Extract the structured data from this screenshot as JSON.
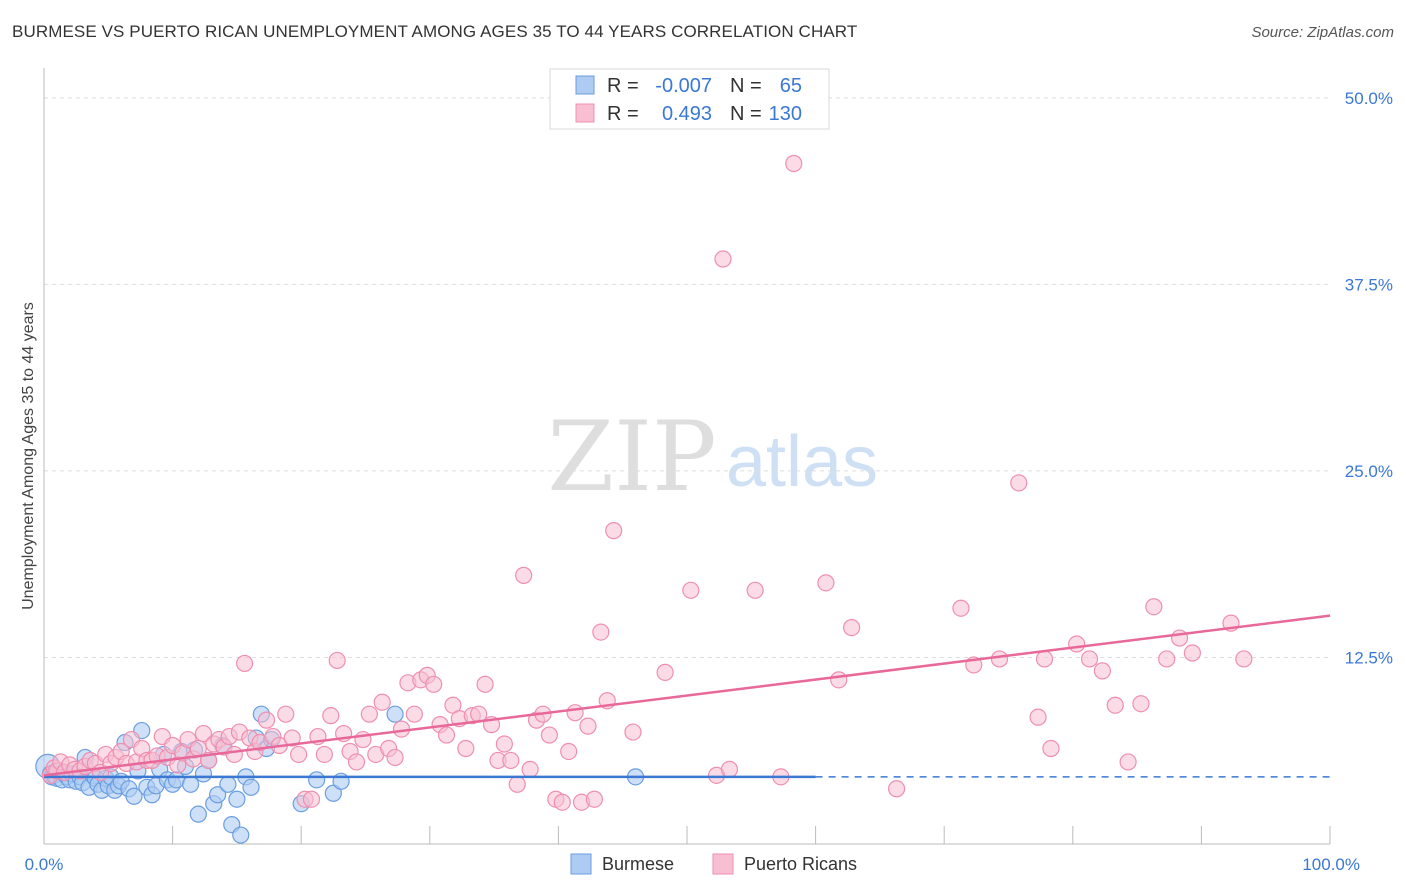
{
  "header": {
    "title": "BURMESE VS PUERTO RICAN UNEMPLOYMENT AMONG AGES 35 TO 44 YEARS CORRELATION CHART",
    "source": "Source: ZipAtlas.com"
  },
  "watermark": {
    "zip": "ZIP",
    "atlas": "atlas"
  },
  "legend_top": {
    "rows": [
      {
        "r_label": "R =",
        "r_value": "-0.007",
        "n_label": "N =",
        "n_value": "65"
      },
      {
        "r_label": "R =",
        "r_value": "0.493",
        "n_label": "N =",
        "n_value": "130"
      }
    ]
  },
  "colors": {
    "burmese_fill": "#aecbf2",
    "burmese_stroke": "#6a9ee0",
    "burmese_line": "#3a78d4",
    "puerto_fill": "#f8bfd2",
    "puerto_stroke": "#ee8fb0",
    "puerto_line": "#e8689a",
    "value_blue": "#3a78d4",
    "grid": "#dddddd"
  },
  "chart_data": {
    "type": "scatter",
    "title": "BURMESE VS PUERTO RICAN UNEMPLOYMENT AMONG AGES 35 TO 44 YEARS CORRELATION CHART",
    "xlabel": "",
    "ylabel": "Unemployment Among Ages 35 to 44 years",
    "xlim": [
      0,
      100
    ],
    "ylim": [
      0,
      52
    ],
    "x_tick_labels": [
      "0.0%",
      "100.0%"
    ],
    "y_ticks": [
      12.5,
      25.0,
      37.5,
      50.0
    ],
    "y_tick_labels": [
      "12.5%",
      "25.0%",
      "37.5%",
      "50.0%"
    ],
    "grid": true,
    "legend_position": "bottom-center",
    "series": [
      {
        "name": "Burmese",
        "R": -0.007,
        "N": 65,
        "trend": {
          "x0": 0,
          "y0": 4.5,
          "x1": 60,
          "y1": 4.5,
          "dashed_to_x": 100
        },
        "points": [
          [
            0.3,
            5.2
          ],
          [
            0.5,
            4.7
          ],
          [
            0.6,
            4.5
          ],
          [
            0.8,
            4.6
          ],
          [
            1.0,
            4.4
          ],
          [
            1.2,
            4.9
          ],
          [
            1.4,
            4.3
          ],
          [
            1.5,
            4.8
          ],
          [
            1.8,
            4.5
          ],
          [
            2.0,
            4.3
          ],
          [
            2.2,
            4.7
          ],
          [
            2.5,
            4.2
          ],
          [
            2.8,
            4.5
          ],
          [
            3.0,
            4.1
          ],
          [
            3.2,
            5.8
          ],
          [
            3.5,
            3.8
          ],
          [
            3.8,
            4.6
          ],
          [
            4.0,
            4.4
          ],
          [
            4.2,
            4.0
          ],
          [
            4.5,
            3.6
          ],
          [
            4.8,
            4.4
          ],
          [
            5.0,
            3.9
          ],
          [
            5.2,
            4.5
          ],
          [
            5.5,
            3.6
          ],
          [
            5.8,
            3.9
          ],
          [
            6.0,
            4.2
          ],
          [
            6.3,
            6.8
          ],
          [
            6.6,
            3.7
          ],
          [
            7.0,
            3.2
          ],
          [
            7.3,
            4.9
          ],
          [
            7.6,
            7.6
          ],
          [
            8.0,
            3.8
          ],
          [
            8.4,
            3.3
          ],
          [
            8.7,
            3.9
          ],
          [
            9.0,
            5.0
          ],
          [
            9.3,
            6.0
          ],
          [
            9.6,
            4.3
          ],
          [
            10.0,
            4.0
          ],
          [
            10.3,
            4.3
          ],
          [
            10.7,
            6.2
          ],
          [
            11.0,
            5.2
          ],
          [
            11.4,
            4.0
          ],
          [
            11.7,
            6.3
          ],
          [
            12.0,
            2.0
          ],
          [
            12.4,
            4.7
          ],
          [
            12.8,
            5.6
          ],
          [
            13.2,
            2.7
          ],
          [
            13.5,
            3.3
          ],
          [
            13.9,
            6.6
          ],
          [
            14.3,
            4.0
          ],
          [
            14.6,
            1.3
          ],
          [
            15.0,
            3.0
          ],
          [
            15.3,
            0.6
          ],
          [
            15.7,
            4.5
          ],
          [
            16.1,
            3.8
          ],
          [
            16.5,
            7.1
          ],
          [
            16.9,
            8.7
          ],
          [
            17.3,
            6.4
          ],
          [
            17.7,
            7.0
          ],
          [
            20.0,
            2.7
          ],
          [
            21.2,
            4.3
          ],
          [
            22.5,
            3.4
          ],
          [
            23.1,
            4.2
          ],
          [
            27.3,
            8.7
          ],
          [
            46.0,
            4.5
          ]
        ]
      },
      {
        "name": "Puerto Ricans",
        "R": 0.493,
        "N": 130,
        "trend": {
          "x0": 0,
          "y0": 4.6,
          "x1": 100,
          "y1": 15.3
        },
        "points": [
          [
            0.5,
            4.6
          ],
          [
            0.8,
            5.1
          ],
          [
            1.0,
            4.9
          ],
          [
            1.3,
            5.5
          ],
          [
            1.6,
            4.8
          ],
          [
            2.0,
            5.3
          ],
          [
            2.4,
            5.0
          ],
          [
            2.8,
            4.9
          ],
          [
            3.2,
            5.2
          ],
          [
            3.6,
            5.6
          ],
          [
            4.0,
            5.4
          ],
          [
            4.4,
            4.8
          ],
          [
            4.8,
            6.0
          ],
          [
            5.2,
            5.4
          ],
          [
            5.6,
            5.8
          ],
          [
            6.0,
            6.2
          ],
          [
            6.4,
            5.4
          ],
          [
            6.8,
            7.0
          ],
          [
            7.2,
            5.5
          ],
          [
            7.6,
            6.4
          ],
          [
            8.0,
            5.6
          ],
          [
            8.4,
            5.6
          ],
          [
            8.8,
            5.9
          ],
          [
            9.2,
            7.2
          ],
          [
            9.6,
            5.8
          ],
          [
            10.0,
            6.6
          ],
          [
            10.4,
            5.3
          ],
          [
            10.8,
            6.1
          ],
          [
            11.2,
            7.0
          ],
          [
            11.6,
            5.7
          ],
          [
            12.0,
            6.4
          ],
          [
            12.4,
            7.4
          ],
          [
            12.8,
            5.6
          ],
          [
            13.2,
            6.7
          ],
          [
            13.6,
            7.0
          ],
          [
            14.0,
            6.5
          ],
          [
            14.4,
            7.2
          ],
          [
            14.8,
            6.0
          ],
          [
            15.2,
            7.5
          ],
          [
            15.6,
            12.1
          ],
          [
            16.0,
            7.1
          ],
          [
            16.4,
            6.2
          ],
          [
            16.8,
            6.8
          ],
          [
            17.3,
            8.3
          ],
          [
            17.8,
            7.2
          ],
          [
            18.3,
            6.6
          ],
          [
            18.8,
            8.7
          ],
          [
            19.3,
            7.1
          ],
          [
            19.8,
            6.0
          ],
          [
            20.3,
            3.0
          ],
          [
            20.8,
            3.0
          ],
          [
            21.3,
            7.2
          ],
          [
            21.8,
            6.0
          ],
          [
            22.3,
            8.6
          ],
          [
            22.8,
            12.3
          ],
          [
            23.3,
            7.4
          ],
          [
            23.8,
            6.2
          ],
          [
            24.3,
            5.5
          ],
          [
            24.8,
            7.0
          ],
          [
            25.3,
            8.7
          ],
          [
            25.8,
            6.0
          ],
          [
            26.3,
            9.5
          ],
          [
            26.8,
            6.4
          ],
          [
            27.3,
            5.8
          ],
          [
            27.8,
            7.7
          ],
          [
            28.3,
            10.8
          ],
          [
            28.8,
            8.7
          ],
          [
            29.3,
            11.0
          ],
          [
            29.8,
            11.3
          ],
          [
            30.3,
            10.7
          ],
          [
            30.8,
            8.0
          ],
          [
            31.3,
            7.3
          ],
          [
            31.8,
            9.3
          ],
          [
            32.3,
            8.4
          ],
          [
            32.8,
            6.4
          ],
          [
            33.3,
            8.6
          ],
          [
            33.8,
            8.7
          ],
          [
            34.3,
            10.7
          ],
          [
            34.8,
            8.0
          ],
          [
            35.3,
            5.6
          ],
          [
            35.8,
            6.7
          ],
          [
            36.3,
            5.6
          ],
          [
            36.8,
            4.0
          ],
          [
            37.3,
            18.0
          ],
          [
            37.8,
            5.0
          ],
          [
            38.3,
            8.3
          ],
          [
            38.8,
            8.7
          ],
          [
            39.3,
            7.3
          ],
          [
            39.8,
            3.0
          ],
          [
            40.3,
            2.8
          ],
          [
            40.8,
            6.2
          ],
          [
            41.3,
            8.8
          ],
          [
            41.8,
            2.8
          ],
          [
            42.3,
            7.9
          ],
          [
            42.8,
            3.0
          ],
          [
            43.3,
            14.2
          ],
          [
            43.8,
            9.6
          ],
          [
            44.3,
            21.0
          ],
          [
            45.8,
            7.5
          ],
          [
            48.3,
            11.5
          ],
          [
            50.3,
            17.0
          ],
          [
            52.3,
            4.6
          ],
          [
            52.8,
            39.2
          ],
          [
            53.3,
            5.0
          ],
          [
            55.3,
            17.0
          ],
          [
            57.3,
            4.5
          ],
          [
            58.3,
            45.6
          ],
          [
            60.8,
            17.5
          ],
          [
            61.8,
            11.0
          ],
          [
            62.8,
            14.5
          ],
          [
            66.3,
            3.7
          ],
          [
            71.3,
            15.8
          ],
          [
            72.3,
            12.0
          ],
          [
            74.3,
            12.4
          ],
          [
            75.8,
            24.2
          ],
          [
            77.3,
            8.5
          ],
          [
            77.8,
            12.4
          ],
          [
            78.3,
            6.4
          ],
          [
            80.3,
            13.4
          ],
          [
            81.3,
            12.4
          ],
          [
            82.3,
            11.6
          ],
          [
            83.3,
            9.3
          ],
          [
            84.3,
            5.5
          ],
          [
            85.3,
            9.4
          ],
          [
            86.3,
            15.9
          ],
          [
            87.3,
            12.4
          ],
          [
            88.3,
            13.8
          ],
          [
            89.3,
            12.8
          ],
          [
            92.3,
            14.8
          ],
          [
            93.3,
            12.4
          ]
        ]
      }
    ]
  },
  "bottom_legend": {
    "items": [
      {
        "label": "Burmese"
      },
      {
        "label": "Puerto Ricans"
      }
    ]
  }
}
